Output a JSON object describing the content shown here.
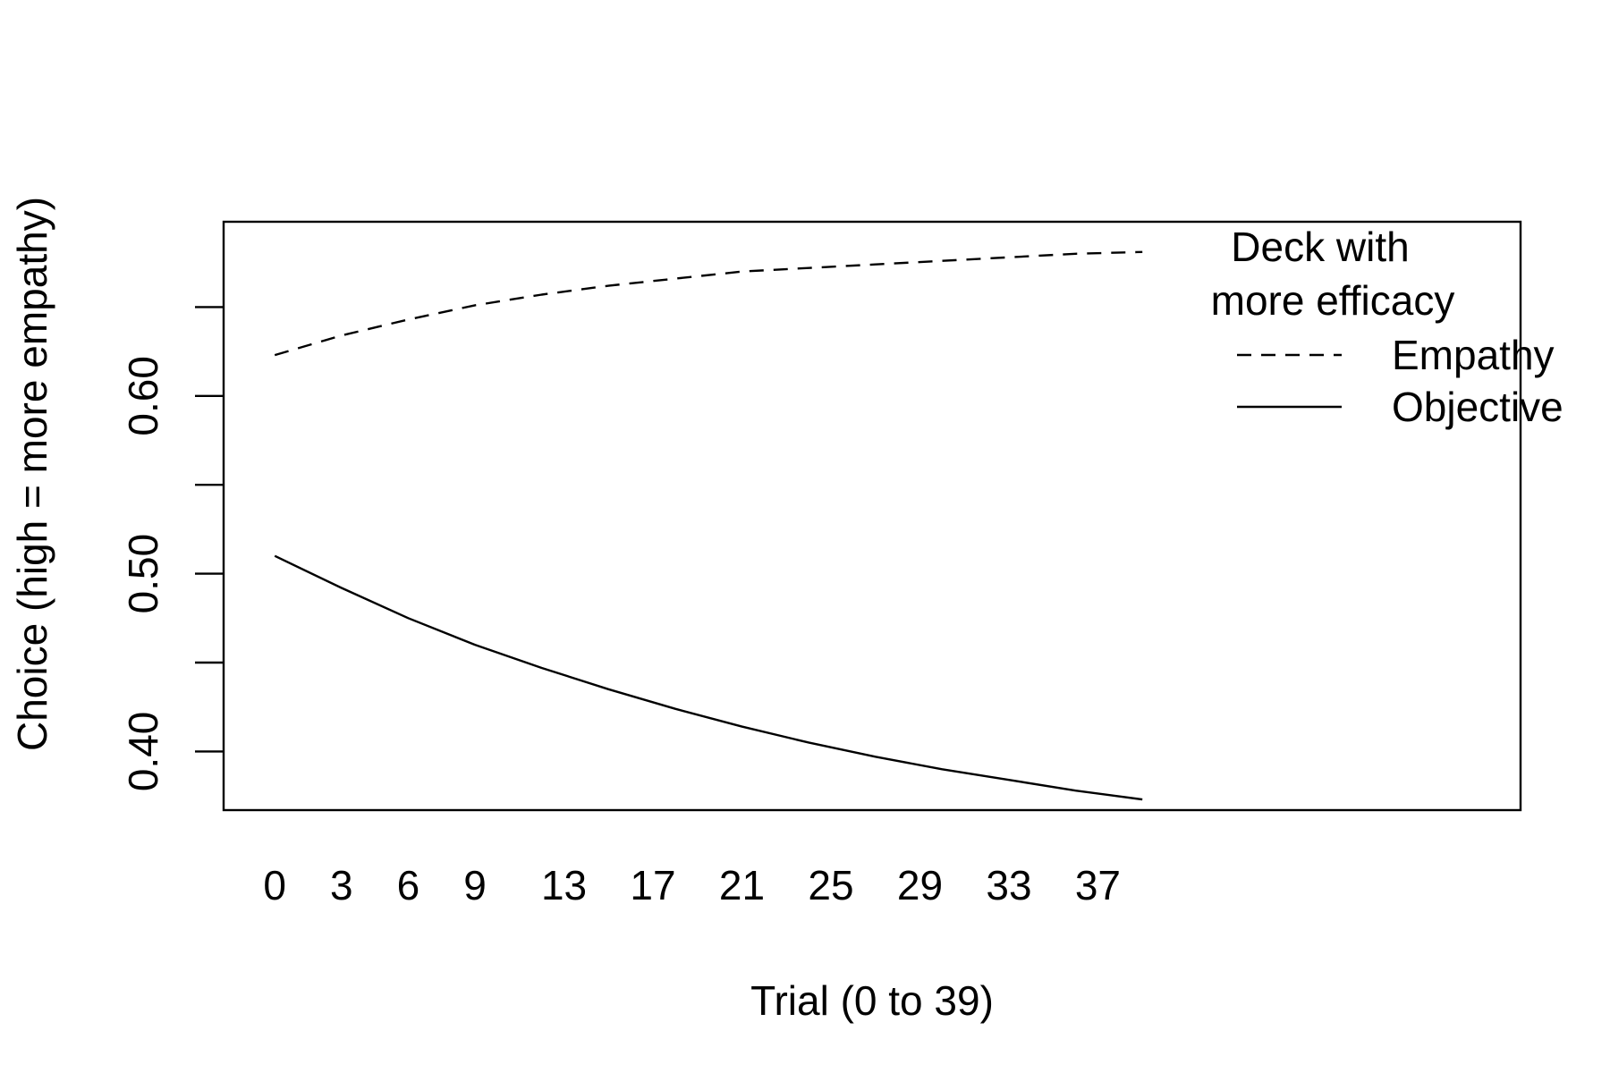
{
  "chart_data": {
    "type": "line",
    "title": "",
    "xlabel": "Trial (0 to 39)",
    "ylabel": "Choice (high = more empathy)",
    "x_tick_labels": [
      "0",
      "3",
      "6",
      "9",
      "13",
      "17",
      "21",
      "25",
      "29",
      "33",
      "37"
    ],
    "x_ticks": [
      0,
      3,
      6,
      9,
      13,
      17,
      21,
      25,
      29,
      33,
      37
    ],
    "y_tick_labels": [
      "0.40",
      "0.50",
      "0.60"
    ],
    "y_ticks": [
      0.4,
      0.45,
      0.5,
      0.55,
      0.6,
      0.65
    ],
    "xlim": [
      -2.3,
      56
    ],
    "ylim": [
      0.367,
      0.698
    ],
    "x_axis_line": false,
    "grid": false,
    "legend_position": "top-right",
    "legend": {
      "title_lines": [
        "Deck with",
        "more efficacy"
      ],
      "entries": [
        {
          "label": "Empathy",
          "style": "dashed"
        },
        {
          "label": "Objective",
          "style": "solid"
        }
      ]
    },
    "x": [
      0,
      3,
      6,
      9,
      12,
      15,
      18,
      21,
      24,
      27,
      30,
      33,
      36,
      39
    ],
    "series": [
      {
        "name": "Empathy",
        "style": "dashed",
        "color": "#000000",
        "values": [
          0.623,
          0.634,
          0.643,
          0.651,
          0.657,
          0.662,
          0.666,
          0.67,
          0.672,
          0.674,
          0.676,
          0.678,
          0.68,
          0.681
        ]
      },
      {
        "name": "Objective",
        "style": "solid",
        "color": "#000000",
        "values": [
          0.51,
          0.492,
          0.475,
          0.46,
          0.447,
          0.435,
          0.424,
          0.414,
          0.405,
          0.397,
          0.39,
          0.384,
          0.378,
          0.373
        ]
      }
    ]
  }
}
